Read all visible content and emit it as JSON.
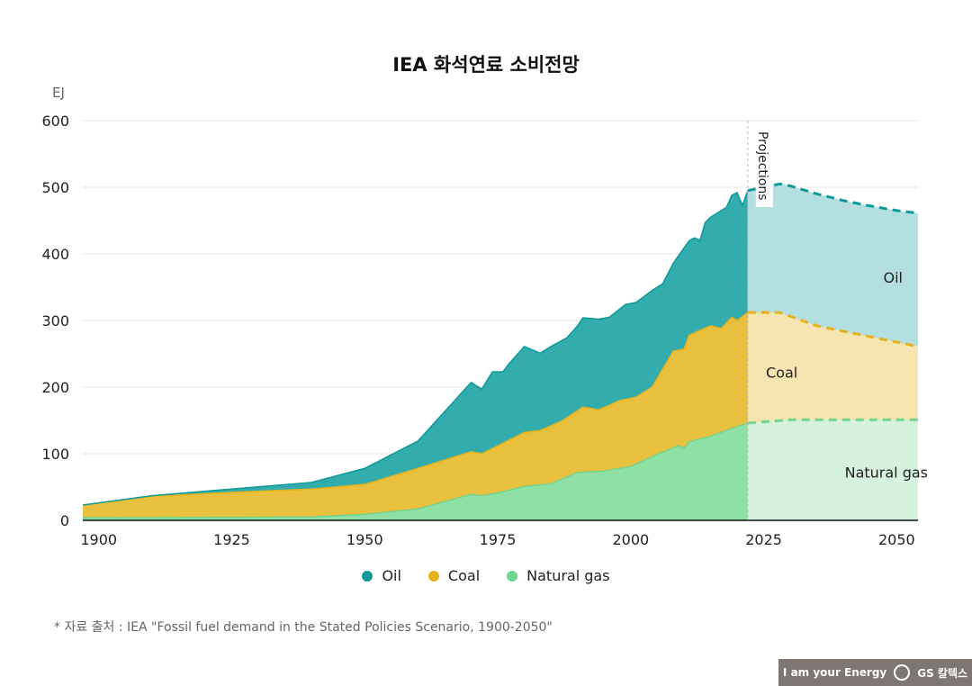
{
  "chart_data": {
    "type": "area",
    "stacked": true,
    "title": "IEA 화석연료 소비전망",
    "ylabel": "EJ",
    "xlabel": "",
    "xlim": [
      1897,
      2054
    ],
    "ylim": [
      0,
      600
    ],
    "x_ticks": [
      1900,
      1925,
      1950,
      1975,
      2000,
      2025,
      2050
    ],
    "y_ticks": [
      0,
      100,
      200,
      300,
      400,
      500,
      600
    ],
    "grid": "horizontal",
    "projection_start": 2022,
    "projection_label": "Projections",
    "legend_position": "bottom",
    "series": [
      {
        "name": "Natural gas",
        "area_label": "Natural gas",
        "color": "#72d48e",
        "fill": "#8ee0a4",
        "projection_fill": "#d4f2dc",
        "points": [
          [
            1897,
            4
          ],
          [
            1940,
            5
          ],
          [
            1950,
            9
          ],
          [
            1960,
            17
          ],
          [
            1970,
            39
          ],
          [
            1972,
            37
          ],
          [
            1975,
            41
          ],
          [
            1980,
            51
          ],
          [
            1985,
            55
          ],
          [
            1990,
            72
          ],
          [
            1995,
            74
          ],
          [
            2000,
            81
          ],
          [
            2005,
            99
          ],
          [
            2009,
            112
          ],
          [
            2010,
            108
          ],
          [
            2011,
            118
          ],
          [
            2015,
            126
          ],
          [
            2018,
            135
          ],
          [
            2022,
            146
          ],
          [
            2030,
            151
          ],
          [
            2054,
            151
          ]
        ]
      },
      {
        "name": "Coal",
        "area_label": "Coal",
        "color": "#e6b21c",
        "fill": "#e9c03d",
        "projection_fill": "#f7e5b1",
        "points": [
          [
            1897,
            23
          ],
          [
            1910,
            36
          ],
          [
            1925,
            42
          ],
          [
            1940,
            47
          ],
          [
            1950,
            54
          ],
          [
            1960,
            78
          ],
          [
            1970,
            103
          ],
          [
            1972,
            100
          ],
          [
            1975,
            112
          ],
          [
            1980,
            132
          ],
          [
            1983,
            135
          ],
          [
            1987,
            149
          ],
          [
            1991,
            170
          ],
          [
            1994,
            166
          ],
          [
            1998,
            180
          ],
          [
            2001,
            185
          ],
          [
            2004,
            200
          ],
          [
            2008,
            254
          ],
          [
            2010,
            257
          ],
          [
            2011,
            278
          ],
          [
            2015,
            292
          ],
          [
            2017,
            288
          ],
          [
            2019,
            305
          ],
          [
            2020,
            300
          ],
          [
            2022,
            312
          ],
          [
            2028,
            312
          ],
          [
            2035,
            292
          ],
          [
            2054,
            261
          ]
        ]
      },
      {
        "name": "Oil",
        "area_label": "Oil",
        "color": "#0e9a99",
        "fill": "#32acac",
        "projection_fill": "#b3dfe0",
        "points": [
          [
            1897,
            23
          ],
          [
            1910,
            37
          ],
          [
            1940,
            57
          ],
          [
            1950,
            78
          ],
          [
            1960,
            119
          ],
          [
            1970,
            207
          ],
          [
            1972,
            197
          ],
          [
            1974,
            223
          ],
          [
            1976,
            223
          ],
          [
            1977,
            234
          ],
          [
            1980,
            261
          ],
          [
            1983,
            251
          ],
          [
            1985,
            261
          ],
          [
            1988,
            274
          ],
          [
            1990,
            292
          ],
          [
            1991,
            304
          ],
          [
            1994,
            302
          ],
          [
            1996,
            305
          ],
          [
            1999,
            324
          ],
          [
            2001,
            327
          ],
          [
            2004,
            345
          ],
          [
            2006,
            355
          ],
          [
            2008,
            386
          ],
          [
            2011,
            420
          ],
          [
            2012,
            424
          ],
          [
            2013,
            420
          ],
          [
            2014,
            447
          ],
          [
            2015,
            455
          ],
          [
            2018,
            470
          ],
          [
            2019,
            488
          ],
          [
            2020,
            492
          ],
          [
            2021,
            473
          ],
          [
            2022,
            495
          ],
          [
            2025,
            500
          ],
          [
            2028,
            505
          ],
          [
            2030,
            502
          ],
          [
            2035,
            490
          ],
          [
            2040,
            480
          ],
          [
            2045,
            472
          ],
          [
            2050,
            465
          ],
          [
            2054,
            461
          ]
        ]
      }
    ]
  },
  "legend": [
    {
      "label": "Oil",
      "color": "#0e9a99"
    },
    {
      "label": "Coal",
      "color": "#e6b21c"
    },
    {
      "label": "Natural gas",
      "color": "#72d48e"
    }
  ],
  "source": "* 자료 출처 : IEA \"Fossil fuel demand in the Stated Policies Scenario, 1900-2050\"",
  "footer": {
    "slogan": "I am your Energy",
    "brand": "GS 칼텍스"
  }
}
